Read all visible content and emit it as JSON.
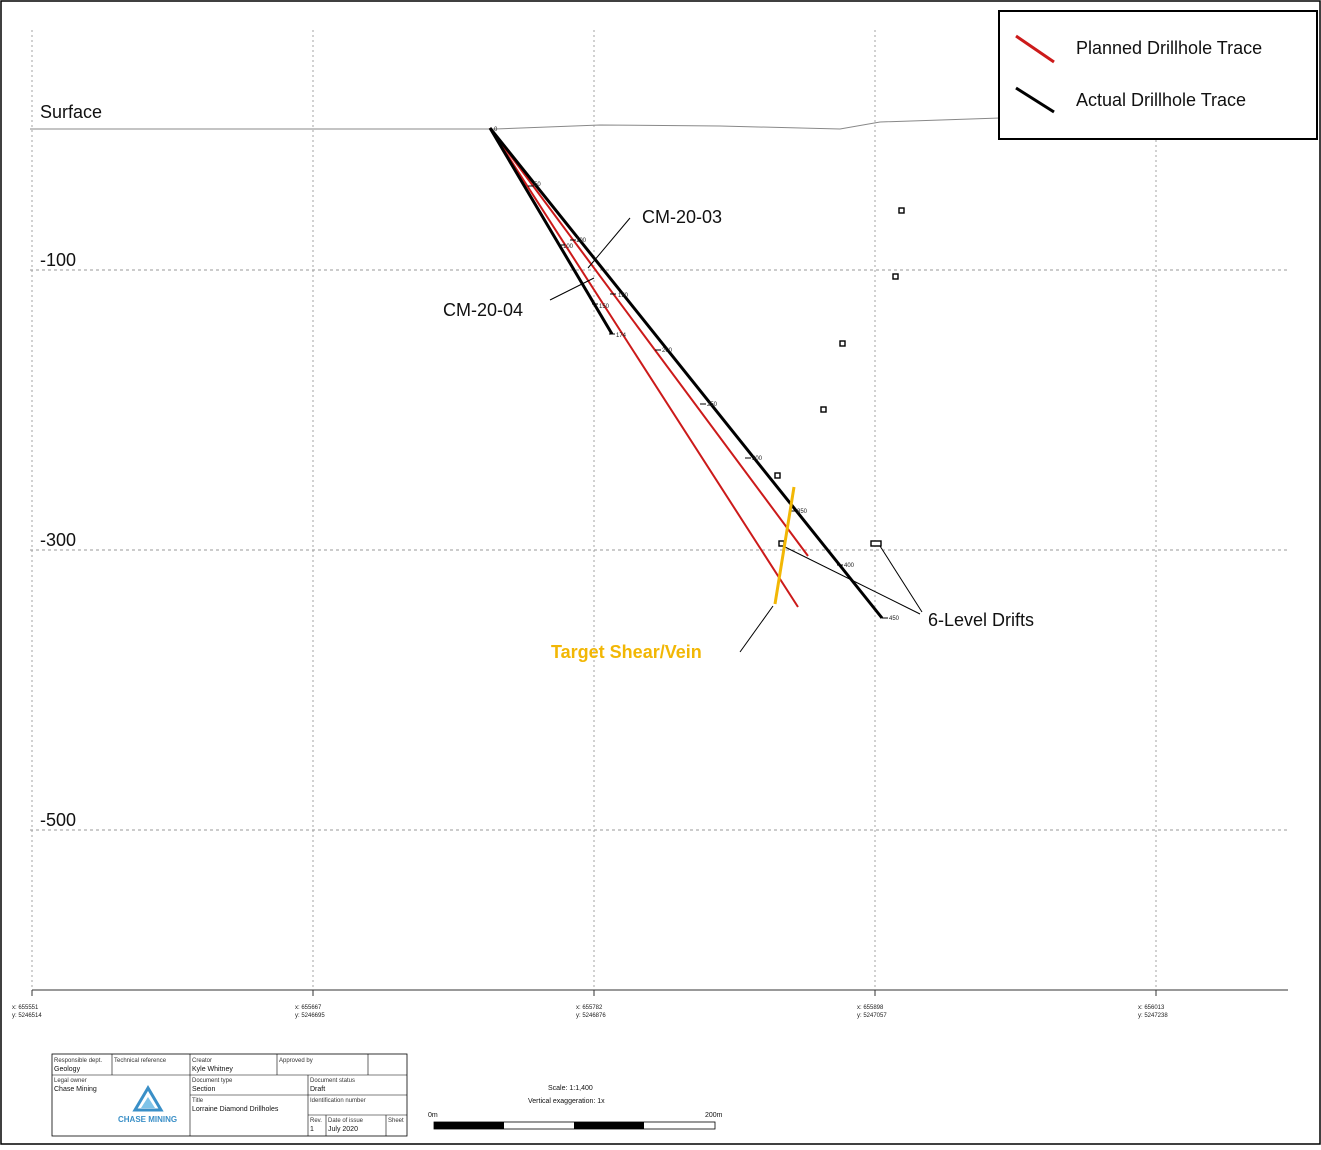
{
  "legend": {
    "planned_label": "Planned Drillhole Trace",
    "actual_label": "Actual Drillhole Trace",
    "planned_color": "#cc1a1a",
    "actual_color": "#000000"
  },
  "section": {
    "surface_label": "Surface",
    "elevations": [
      "-100",
      "-300",
      "-500"
    ],
    "hole_a": "CM-20-03",
    "hole_b": "CM-20-04",
    "drifts_label": "6-Level Drifts",
    "target_label": "Target Shear/Vein",
    "target_color": "#f2b705",
    "depth_ticks_a": [
      "0",
      "50",
      "100",
      "150",
      "200",
      "250",
      "300",
      "350",
      "400",
      "450"
    ],
    "depth_ticks_b": [
      "100",
      "150",
      "174"
    ]
  },
  "coords": [
    {
      "x": "x: 655551",
      "y": "y: 5246514"
    },
    {
      "x": "x: 655667",
      "y": "y: 5246695"
    },
    {
      "x": "x: 655782",
      "y": "y: 5246876"
    },
    {
      "x": "x: 655898",
      "y": "y: 5247057"
    },
    {
      "x": "x: 656013",
      "y": "y: 5247238"
    }
  ],
  "title_block": {
    "resp_dept_h": "Responsible dept.",
    "resp_dept": "Geology",
    "tech_ref_h": "Technical reference",
    "creator_h": "Creator",
    "creator": "Kyle Whitney",
    "approved_h": "Approved by",
    "legal_owner_h": "Legal owner",
    "legal_owner": "Chase Mining",
    "doc_type_h": "Document type",
    "doc_type": "Section",
    "doc_status_h": "Document status",
    "doc_status": "Draft",
    "title_h": "Title",
    "title": "Lorraine Diamond Drillholes",
    "id_h": "Identification number",
    "rev_h": "Rev.",
    "rev": "1",
    "date_h": "Date of issue",
    "date": "July 2020",
    "sheet_h": "Sheet",
    "logo_text": "CHASE MINING"
  },
  "scale": {
    "scale_text": "Scale: 1:1,400",
    "vex_text": "Vertical exaggeration: 1x",
    "start_label": "0m",
    "end_label": "200m"
  }
}
